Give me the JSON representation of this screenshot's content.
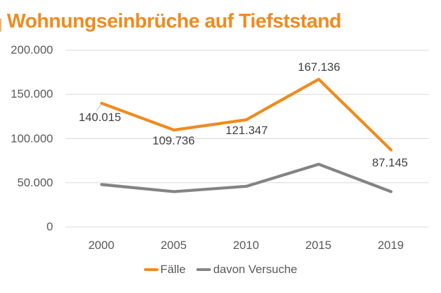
{
  "chart_data": {
    "type": "line",
    "title": "Wohnungseinbrüche auf Tiefststand",
    "categories": [
      "2000",
      "2005",
      "2010",
      "2015",
      "2019"
    ],
    "series": [
      {
        "name": "Fälle",
        "color": "#EF8B1E",
        "values": [
          140015,
          109736,
          121347,
          167136,
          87145
        ],
        "labels": [
          "140.015",
          "109.736",
          "121.347",
          "167.136",
          "87.145"
        ]
      },
      {
        "name": "davon Versuche",
        "color": "#848484",
        "values": [
          48000,
          40000,
          46000,
          71000,
          40000
        ],
        "labels": null
      }
    ],
    "ylim": [
      0,
      200000
    ],
    "yticks": [
      0,
      50000,
      100000,
      150000,
      200000
    ],
    "ytick_labels": [
      "0",
      "50.000",
      "100.000",
      "150.000",
      "200.000"
    ],
    "xlabel": "",
    "ylabel": "",
    "grid": "horizontal",
    "grid_color": "#D9D9D9",
    "legend_position": "bottom",
    "background_color": "#FFFFFF",
    "title_color": "#EF8B1E",
    "tick_label_color": "#595959",
    "data_label_color": "#3F3F3F"
  }
}
